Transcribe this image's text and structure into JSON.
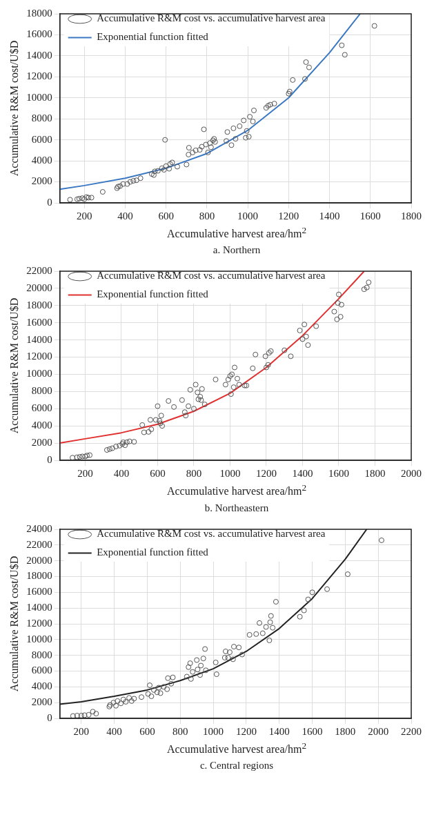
{
  "chart_data": [
    {
      "type": "scatter",
      "title": "a. Northern",
      "xlabel": "Accumulative harvest area/hm$^{2}$",
      "ylabel": "Accumulative R&M cost/U$D",
      "xlim": [
        80,
        1800
      ],
      "xticks": [
        200,
        400,
        600,
        800,
        1000,
        1200,
        1400,
        1600,
        1800
      ],
      "ylim": [
        0,
        18000
      ],
      "yticks": [
        0,
        2000,
        4000,
        6000,
        8000,
        10000,
        12000,
        14000,
        16000,
        18000
      ],
      "grid": true,
      "legend": "top left",
      "marker": "circle",
      "series": [
        {
          "name": "Accumulative R&M cost vs. accumulative harvest area",
          "color": "#555555",
          "x": [
            130,
            165,
            175,
            190,
            200,
            210,
            220,
            235,
            290,
            360,
            365,
            375,
            390,
            410,
            425,
            440,
            455,
            475,
            530,
            540,
            545,
            560,
            580,
            590,
            595,
            600,
            615,
            620,
            630,
            655,
            700,
            710,
            712,
            730,
            745,
            765,
            775,
            785,
            795,
            805,
            815,
            820,
            830,
            835,
            840,
            895,
            900,
            920,
            930,
            940,
            960,
            980,
            990,
            995,
            1005,
            1010,
            1025,
            1030,
            1090,
            1100,
            1110,
            1130,
            1200,
            1205,
            1220,
            1280,
            1285,
            1300,
            1460,
            1475,
            1620
          ],
          "values": [
            300,
            350,
            400,
            450,
            350,
            550,
            500,
            500,
            1050,
            1400,
            1550,
            1600,
            1800,
            1800,
            2000,
            2100,
            2150,
            2350,
            2750,
            2650,
            3000,
            3050,
            3300,
            3150,
            6000,
            3500,
            3250,
            3700,
            3850,
            3450,
            3650,
            4600,
            5250,
            4800,
            5000,
            5050,
            5350,
            7000,
            5550,
            4800,
            5700,
            5300,
            5950,
            6100,
            5800,
            5900,
            6750,
            5500,
            7100,
            6100,
            7300,
            7850,
            6200,
            6850,
            6300,
            8200,
            7750,
            8800,
            9050,
            9250,
            9350,
            9450,
            10400,
            10600,
            11700,
            11800,
            13400,
            12900,
            15000,
            14100,
            16850
          ]
        },
        {
          "name": "Exponential function fitted",
          "color": "#3b78c4",
          "type": "line",
          "marker": "none",
          "x": [
            80,
            200,
            400,
            600,
            800,
            1000,
            1200,
            1400,
            1550
          ],
          "values": [
            1300,
            1650,
            2350,
            3300,
            4700,
            6900,
            10000,
            14300,
            18000
          ]
        }
      ]
    },
    {
      "type": "scatter",
      "title": "b. Northeastern",
      "xlabel": "Accumulative harvest area/hm$^{2}$",
      "ylabel": "Accumulative R&M cost/U$D",
      "xlim": [
        60,
        2000
      ],
      "xticks": [
        200,
        400,
        600,
        800,
        1000,
        1200,
        1400,
        1600,
        1800,
        2000
      ],
      "ylim": [
        0,
        22000
      ],
      "yticks": [
        0,
        2000,
        4000,
        6000,
        8000,
        10000,
        12000,
        14000,
        16000,
        18000,
        20000,
        22000
      ],
      "grid": true,
      "legend": "top left",
      "marker": "circle",
      "series": [
        {
          "name": "Accumulative R&M cost vs. accumulative harvest area",
          "color": "#555555",
          "x": [
            130,
            155,
            170,
            185,
            200,
            210,
            225,
            320,
            335,
            350,
            370,
            390,
            405,
            410,
            420,
            430,
            445,
            470,
            515,
            525,
            550,
            560,
            565,
            590,
            600,
            610,
            615,
            620,
            625,
            660,
            690,
            735,
            750,
            755,
            770,
            780,
            800,
            810,
            820,
            825,
            835,
            840,
            845,
            860,
            920,
            975,
            990,
            1000,
            1005,
            1010,
            1020,
            1025,
            1040,
            1050,
            1080,
            1090,
            1125,
            1140,
            1195,
            1200,
            1210,
            1215,
            1225,
            1300,
            1335,
            1385,
            1400,
            1410,
            1420,
            1430,
            1475,
            1575,
            1590,
            1595,
            1600,
            1610,
            1615,
            1740,
            1755,
            1765
          ],
          "values": [
            300,
            350,
            400,
            450,
            450,
            550,
            600,
            1200,
            1300,
            1400,
            1600,
            1700,
            1900,
            2100,
            1750,
            2100,
            2200,
            2150,
            4100,
            3250,
            3300,
            4700,
            3600,
            4700,
            6300,
            4600,
            4300,
            5200,
            4000,
            6900,
            6200,
            7000,
            5600,
            5200,
            6300,
            8200,
            6000,
            8800,
            7900,
            7100,
            7400,
            7000,
            8300,
            6500,
            9400,
            8800,
            9400,
            9800,
            7700,
            10000,
            8500,
            10800,
            9500,
            8800,
            8700,
            8700,
            10700,
            12300,
            12100,
            10800,
            11100,
            12500,
            12700,
            12800,
            12100,
            15100,
            14100,
            15800,
            14400,
            13400,
            15600,
            17300,
            16400,
            18300,
            19300,
            16700,
            18100,
            19900,
            20100,
            20700
          ]
        },
        {
          "name": "Exponential function fitted",
          "color": "#e03030",
          "type": "line",
          "marker": "none",
          "x": [
            60,
            200,
            400,
            600,
            800,
            1000,
            1200,
            1400,
            1600,
            1740
          ],
          "values": [
            2000,
            2500,
            3200,
            4200,
            5700,
            7800,
            10800,
            14500,
            18800,
            22000
          ]
        }
      ]
    },
    {
      "type": "scatter",
      "title": "c. Central regions",
      "xlabel": "Accumulative harvest area/hm$^{2}$",
      "ylabel": "Accumulative R&M cost/U$D",
      "xlim": [
        70,
        2200
      ],
      "xticks": [
        200,
        400,
        600,
        800,
        1000,
        1200,
        1400,
        1600,
        1800,
        2000,
        2200
      ],
      "ylim": [
        0,
        24000
      ],
      "yticks": [
        0,
        2000,
        4000,
        6000,
        8000,
        10000,
        12000,
        14000,
        16000,
        18000,
        20000,
        22000,
        24000
      ],
      "grid": true,
      "legend": "top left",
      "marker": "circle",
      "series": [
        {
          "name": "Accumulative R&M cost vs. accumulative harvest area",
          "color": "#555555",
          "x": [
            150,
            175,
            200,
            220,
            245,
            270,
            290,
            370,
            375,
            395,
            410,
            420,
            440,
            455,
            470,
            490,
            505,
            520,
            565,
            605,
            615,
            625,
            640,
            660,
            670,
            680,
            700,
            720,
            725,
            745,
            755,
            840,
            850,
            860,
            865,
            875,
            900,
            905,
            920,
            925,
            940,
            950,
            955,
            1015,
            1020,
            1070,
            1075,
            1090,
            1100,
            1120,
            1125,
            1155,
            1175,
            1220,
            1260,
            1280,
            1300,
            1320,
            1340,
            1345,
            1350,
            1360,
            1380,
            1525,
            1550,
            1575,
            1600,
            1690,
            1815,
            2020
          ],
          "values": [
            300,
            350,
            350,
            400,
            450,
            850,
            600,
            1500,
            1700,
            2000,
            1600,
            2200,
            1900,
            2400,
            2100,
            2600,
            2200,
            2500,
            2700,
            3100,
            4200,
            2800,
            3600,
            3300,
            3900,
            3200,
            4000,
            3700,
            5100,
            4400,
            5200,
            5300,
            6500,
            7000,
            5000,
            5900,
            7400,
            6200,
            5500,
            6700,
            7600,
            8800,
            6100,
            7100,
            5600,
            7700,
            8500,
            7700,
            8400,
            7500,
            9100,
            9000,
            8100,
            10600,
            10700,
            12100,
            10800,
            11600,
            9900,
            12200,
            13000,
            11500,
            14800,
            12900,
            13700,
            15100,
            16000,
            16400,
            18300,
            22600
          ]
        },
        {
          "name": "Exponential function fitted",
          "color": "#222222",
          "type": "line",
          "marker": "none",
          "x": [
            70,
            200,
            400,
            600,
            800,
            1000,
            1200,
            1400,
            1600,
            1800,
            1930
          ],
          "values": [
            1800,
            2100,
            2800,
            3600,
            4800,
            6300,
            8500,
            11400,
            15200,
            20200,
            24000
          ]
        }
      ]
    }
  ]
}
